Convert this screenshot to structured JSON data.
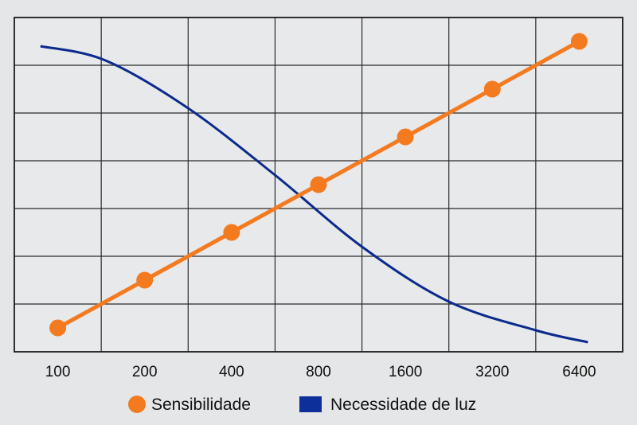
{
  "chart_data": {
    "type": "line",
    "categories": [
      "100",
      "200",
      "400",
      "800",
      "1600",
      "3200",
      "6400"
    ],
    "series": [
      {
        "name": "Sensibilidade",
        "color": "#f47a20",
        "marker": "circle",
        "values": [
          0.5,
          1.5,
          2.5,
          3.5,
          4.5,
          5.5,
          6.5
        ]
      },
      {
        "name": "Necessidade de luz",
        "color": "#0b2a8c",
        "legend_marker": "square",
        "curve": [
          [
            -0.2,
            6.4
          ],
          [
            0.55,
            6.1
          ],
          [
            1.5,
            5.1
          ],
          [
            2.5,
            3.7
          ],
          [
            3.5,
            2.2
          ],
          [
            4.5,
            1.05
          ],
          [
            5.5,
            0.45
          ],
          [
            6.1,
            0.2
          ]
        ]
      }
    ],
    "ylim": [
      0,
      7
    ],
    "y_gridlines": 7,
    "grid": true,
    "y_tick_labels": false,
    "legend_position": "bottom"
  }
}
